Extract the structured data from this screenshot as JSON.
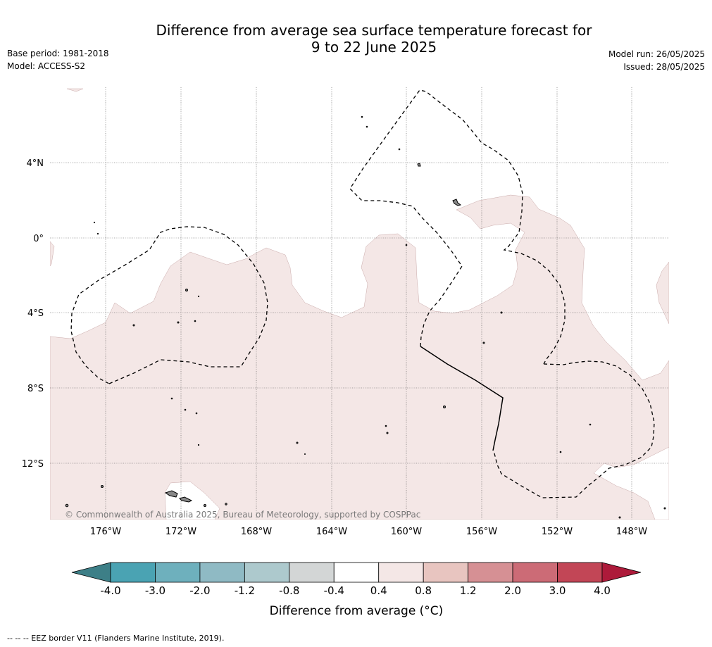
{
  "header": {
    "title_line1": "Difference from average sea surface temperature forecast for",
    "title_line2": "9 to 22 June 2025",
    "base_period": "Base period: 1981-2018",
    "model": "Model: ACCESS-S2",
    "model_run": "Model run: 26/05/2025",
    "issued": "Issued: 28/05/2025"
  },
  "map": {
    "lat_labels": [
      "4°N",
      "0°",
      "4°S",
      "8°S",
      "12°S"
    ],
    "lon_labels": [
      "176°W",
      "172°W",
      "168°W",
      "164°W",
      "160°W",
      "156°W",
      "152°W",
      "148°W"
    ],
    "copyright": "© Commonwealth of Australia 2025, Bureau of Meteorology, supported by COSPPac"
  },
  "colorbar": {
    "ticks": [
      "-4.0",
      "-3.0",
      "-2.0",
      "-1.2",
      "-0.8",
      "-0.4",
      "0.4",
      "0.8",
      "1.2",
      "2.0",
      "3.0",
      "4.0"
    ],
    "colors": [
      "#3d7f87",
      "#4aa3b3",
      "#6eb0bd",
      "#8fbac4",
      "#adc9cd",
      "#d3d6d6",
      "#ffffff",
      "#f4e7e6",
      "#e8c5c0",
      "#d69094",
      "#cc6b76",
      "#c24656",
      "#ad1a3a"
    ],
    "label": "Difference from average (°C)"
  },
  "footnote": "-- -- -- EEZ border V11 (Flanders Marine Institute, 2019)."
}
